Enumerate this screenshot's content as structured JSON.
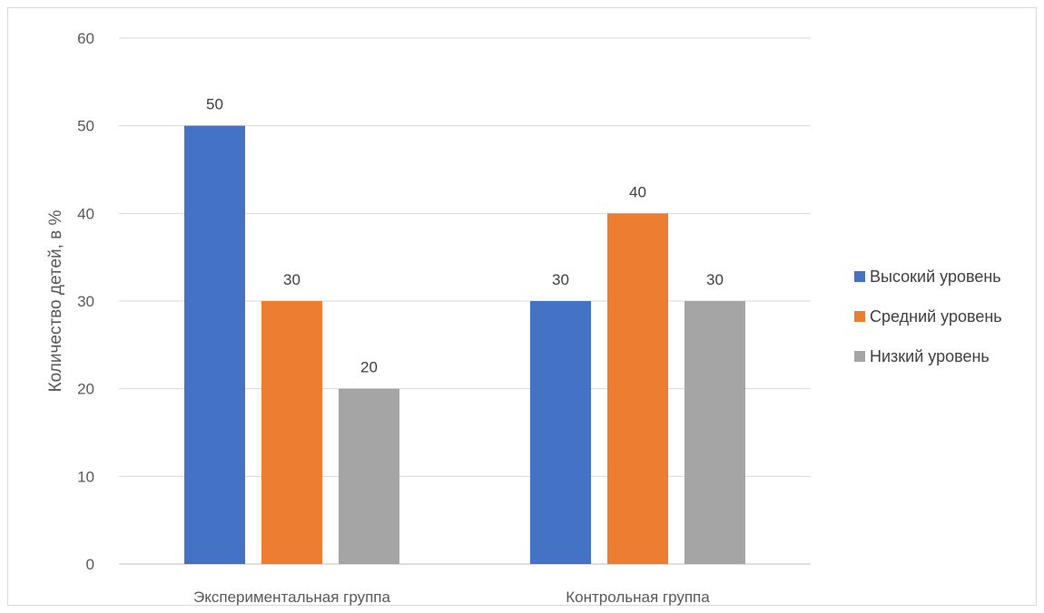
{
  "chart_data": {
    "type": "bar",
    "categories": [
      "Экспериментальная группа",
      "Контрольная группа"
    ],
    "series": [
      {
        "name": "Высокий уровень",
        "color": "#4472C4",
        "values": [
          50,
          30
        ]
      },
      {
        "name": "Средний уровень",
        "color": "#ED7D31",
        "values": [
          30,
          40
        ]
      },
      {
        "name": "Низкий уровень",
        "color": "#A5A5A5",
        "values": [
          20,
          30
        ]
      }
    ],
    "ylabel": "Количество детей, в %",
    "xlabel": "",
    "ylim": [
      0,
      60
    ],
    "yticks": [
      0,
      10,
      20,
      30,
      40,
      50,
      60
    ],
    "grid": true,
    "legend": "right",
    "data_labels": true
  }
}
